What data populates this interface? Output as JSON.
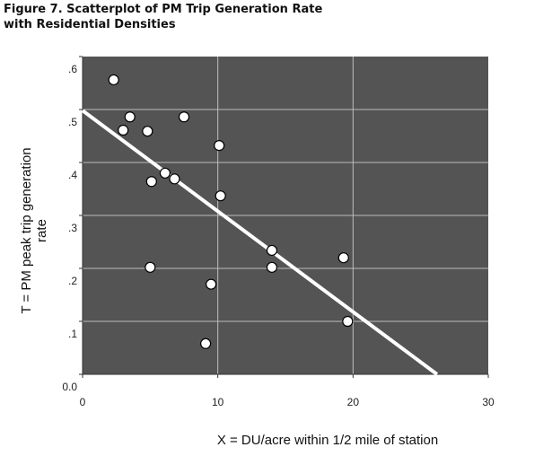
{
  "chart_data": {
    "type": "scatter",
    "title": "Figure 7.  Scatterplot of PM Trip Generation Rate",
    "subtitle": "with Residential Densities",
    "xlabel": "X = DU/acre within 1/2 mile of station",
    "ylabel": "T = PM peak trip generation rate",
    "xlim": [
      0,
      30
    ],
    "ylim": [
      0,
      0.6
    ],
    "x_ticks": [
      {
        "value": 0,
        "label": "0"
      },
      {
        "value": 10,
        "label": "10"
      },
      {
        "value": 20,
        "label": "20"
      },
      {
        "value": 30,
        "label": "30"
      }
    ],
    "y_ticks": [
      {
        "value": 0,
        "label": "0.0"
      },
      {
        "value": 0.1,
        "label": ".1"
      },
      {
        "value": 0.2,
        "label": ".2"
      },
      {
        "value": 0.3,
        "label": ".3"
      },
      {
        "value": 0.4,
        "label": ".4"
      },
      {
        "value": 0.5,
        "label": ".5"
      },
      {
        "value": 0.6,
        "label": ".6"
      }
    ],
    "grid": true,
    "points": [
      {
        "x": 2.3,
        "y": 0.556
      },
      {
        "x": 3.5,
        "y": 0.486
      },
      {
        "x": 3.0,
        "y": 0.461
      },
      {
        "x": 4.8,
        "y": 0.459
      },
      {
        "x": 7.5,
        "y": 0.486
      },
      {
        "x": 10.1,
        "y": 0.432
      },
      {
        "x": 6.1,
        "y": 0.38
      },
      {
        "x": 6.8,
        "y": 0.369
      },
      {
        "x": 5.1,
        "y": 0.364
      },
      {
        "x": 10.2,
        "y": 0.337
      },
      {
        "x": 14.0,
        "y": 0.234
      },
      {
        "x": 14.0,
        "y": 0.202
      },
      {
        "x": 5.0,
        "y": 0.202
      },
      {
        "x": 9.5,
        "y": 0.17
      },
      {
        "x": 9.1,
        "y": 0.058
      },
      {
        "x": 19.3,
        "y": 0.22
      },
      {
        "x": 19.6,
        "y": 0.1
      }
    ],
    "fit_line": {
      "intercept": 0.498,
      "slope": -0.019
    },
    "colors": {
      "plot_bg": "#545454",
      "grid": "#bdbdbd",
      "point": "#ffffff",
      "line": "#ffffff"
    }
  }
}
